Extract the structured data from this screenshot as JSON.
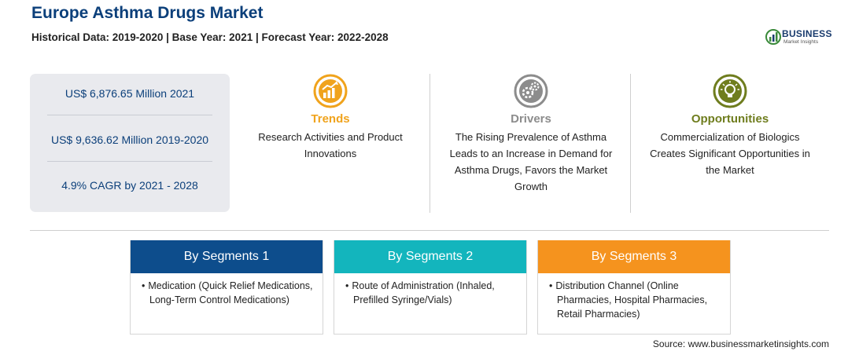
{
  "header": {
    "title": "Europe Asthma Drugs Market",
    "subtitle": "Historical Data: 2019-2020 | Base Year: 2021 | Forecast Year: 2022-2028"
  },
  "logo": {
    "name": "BUSINESS",
    "tagline": "Market Insights"
  },
  "stats": [
    "US$ 6,876.65 Million 2021",
    "US$ 9,636.62 Million 2019-2020",
    "4.9% CAGR by 2021 - 2028"
  ],
  "features": {
    "trends": {
      "title": "Trends",
      "color": "#f0a31c",
      "lines": [
        "Research Activities and Product",
        "Innovations"
      ]
    },
    "drivers": {
      "title": "Drivers",
      "color": "#8c8c8c",
      "lines": [
        "The Rising Prevalence of Asthma",
        "Leads to an Increase in Demand for",
        "Asthma Drugs, Favors the Market",
        "Growth"
      ]
    },
    "opportunities": {
      "title": "Opportunities",
      "color": "#6f7d1e",
      "lines": [
        "Commercialization of Biologics",
        "Creates Significant Opportunities in",
        "the Market"
      ]
    }
  },
  "segments": [
    {
      "title": "By Segments 1",
      "color": "#0d4d8c",
      "line1": "Medication (Quick Relief Medications,",
      "line2": "Long-Term Control Medications)",
      "line3": ""
    },
    {
      "title": "By Segments 2",
      "color": "#13b5bd",
      "line1": "Route of Administration (Inhaled,",
      "line2": "Prefilled Syringe/Vials)",
      "line3": ""
    },
    {
      "title": "By Segments 3",
      "color": "#f5931e",
      "line1": "Distribution Channel (Online",
      "line2": "Pharmacies, Hospital Pharmacies,",
      "line3": "Retail Pharmacies)"
    }
  ],
  "source": "Source: www.businessmarketinsights.com"
}
